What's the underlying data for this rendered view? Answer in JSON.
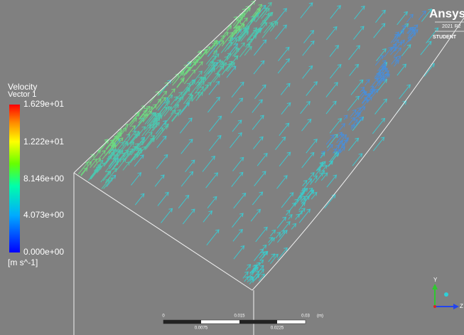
{
  "legend": {
    "title": "Velocity",
    "subtitle": "Vector 1",
    "labels": [
      "1.629e+01",
      "1.222e+01",
      "8.146e+00",
      "4.073e+00",
      "0.000e+00"
    ],
    "unit": "[m s^-1]"
  },
  "logo": {
    "name": "Ansys",
    "version": "2021 R2",
    "edition": "STUDENT"
  },
  "scale_bar": {
    "top_labels": [
      "0",
      "0.015",
      "0.03",
      "(m)"
    ],
    "bottom_labels": [
      "0.0075",
      "0.0225"
    ]
  },
  "axes": {
    "y": "Y",
    "z": "Z"
  }
}
